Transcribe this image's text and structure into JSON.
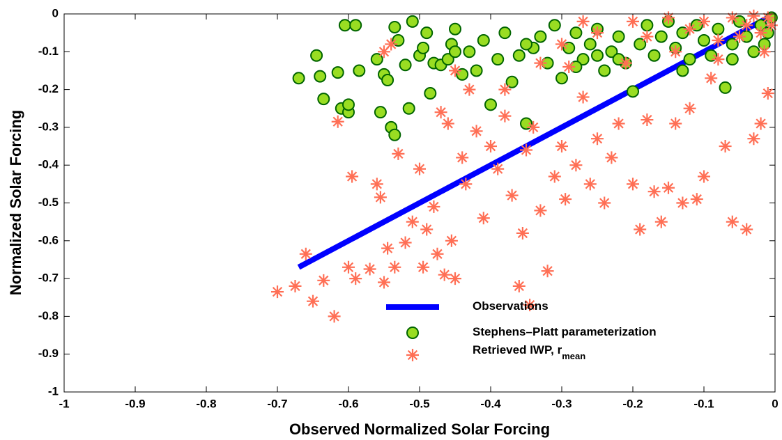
{
  "chart_data": {
    "type": "scatter",
    "xlabel": "Observed Normalized Solar Forcing",
    "ylabel": "Normalized Solar Forcing",
    "xlim": [
      -1,
      0
    ],
    "ylim": [
      -1,
      0
    ],
    "xticks": [
      -1,
      -0.9,
      -0.8,
      -0.7,
      -0.6,
      -0.5,
      -0.4,
      -0.3,
      -0.2,
      -0.1,
      0
    ],
    "yticks": [
      -1,
      -0.9,
      -0.8,
      -0.7,
      -0.6,
      -0.5,
      -0.4,
      -0.3,
      -0.2,
      -0.1,
      0
    ],
    "grid": false,
    "series": [
      {
        "name": "Observations",
        "color": "#0000ff",
        "marker": "line",
        "x": [
          -0.67,
          0
        ],
        "values": [
          -0.67,
          0
        ]
      },
      {
        "name": "Stephens–Platt parameterization",
        "color": "#99dd22",
        "edge": "#006400",
        "marker": "circle",
        "x": [
          -0.67,
          -0.645,
          -0.64,
          -0.635,
          -0.615,
          -0.61,
          -0.605,
          -0.6,
          -0.6,
          -0.59,
          -0.585,
          -0.56,
          -0.555,
          -0.55,
          -0.545,
          -0.54,
          -0.535,
          -0.535,
          -0.53,
          -0.52,
          -0.515,
          -0.51,
          -0.5,
          -0.495,
          -0.49,
          -0.485,
          -0.48,
          -0.47,
          -0.46,
          -0.455,
          -0.45,
          -0.44,
          -0.43,
          -0.42,
          -0.41,
          -0.4,
          -0.39,
          -0.38,
          -0.37,
          -0.36,
          -0.35,
          -0.34,
          -0.33,
          -0.32,
          -0.31,
          -0.3,
          -0.29,
          -0.28,
          -0.27,
          -0.26,
          -0.25,
          -0.24,
          -0.23,
          -0.22,
          -0.21,
          -0.2,
          -0.19,
          -0.18,
          -0.17,
          -0.16,
          -0.15,
          -0.14,
          -0.13,
          -0.12,
          -0.11,
          -0.1,
          -0.09,
          -0.08,
          -0.07,
          -0.06,
          -0.05,
          -0.04,
          -0.03,
          -0.02,
          -0.015,
          -0.01,
          -0.005,
          -0.25,
          -0.35,
          -0.45,
          -0.28,
          -0.22,
          -0.13,
          -0.06
        ],
        "values": [
          -0.17,
          -0.11,
          -0.165,
          -0.225,
          -0.155,
          -0.25,
          -0.03,
          -0.26,
          -0.24,
          -0.03,
          -0.15,
          -0.12,
          -0.26,
          -0.16,
          -0.175,
          -0.3,
          -0.035,
          -0.32,
          -0.07,
          -0.135,
          -0.25,
          -0.02,
          -0.11,
          -0.09,
          -0.05,
          -0.21,
          -0.13,
          -0.135,
          -0.12,
          -0.08,
          -0.04,
          -0.16,
          -0.1,
          -0.15,
          -0.07,
          -0.24,
          -0.12,
          -0.05,
          -0.18,
          -0.11,
          -0.29,
          -0.09,
          -0.06,
          -0.13,
          -0.03,
          -0.17,
          -0.09,
          -0.05,
          -0.12,
          -0.08,
          -0.04,
          -0.15,
          -0.1,
          -0.06,
          -0.13,
          -0.205,
          -0.08,
          -0.03,
          -0.11,
          -0.06,
          -0.02,
          -0.09,
          -0.05,
          -0.12,
          -0.03,
          -0.07,
          -0.11,
          -0.04,
          -0.195,
          -0.08,
          -0.02,
          -0.06,
          -0.1,
          -0.03,
          -0.08,
          -0.05,
          -0.01,
          -0.11,
          -0.08,
          -0.1,
          -0.14,
          -0.12,
          -0.15,
          -0.12
        ]
      },
      {
        "name": "Retrieved IWP, r",
        "name_sub": "mean",
        "color": "#ff6f55",
        "marker": "star",
        "x": [
          -0.7,
          -0.675,
          -0.66,
          -0.65,
          -0.635,
          -0.62,
          -0.615,
          -0.6,
          -0.595,
          -0.59,
          -0.57,
          -0.56,
          -0.555,
          -0.55,
          -0.545,
          -0.54,
          -0.535,
          -0.53,
          -0.52,
          -0.51,
          -0.5,
          -0.495,
          -0.49,
          -0.48,
          -0.475,
          -0.47,
          -0.465,
          -0.46,
          -0.455,
          -0.45,
          -0.44,
          -0.435,
          -0.43,
          -0.42,
          -0.41,
          -0.4,
          -0.39,
          -0.38,
          -0.37,
          -0.36,
          -0.355,
          -0.35,
          -0.345,
          -0.34,
          -0.33,
          -0.32,
          -0.31,
          -0.3,
          -0.295,
          -0.29,
          -0.28,
          -0.27,
          -0.26,
          -0.25,
          -0.24,
          -0.23,
          -0.22,
          -0.21,
          -0.2,
          -0.19,
          -0.18,
          -0.17,
          -0.16,
          -0.15,
          -0.14,
          -0.13,
          -0.12,
          -0.11,
          -0.1,
          -0.09,
          -0.08,
          -0.07,
          -0.06,
          -0.05,
          -0.04,
          -0.03,
          -0.02,
          -0.015,
          -0.01,
          -0.005,
          -0.55,
          -0.45,
          -0.38,
          -0.3,
          -0.25,
          -0.2,
          -0.18,
          -0.15,
          -0.12,
          -0.1,
          -0.08,
          -0.06,
          -0.04,
          -0.03,
          -0.02,
          -0.01,
          -0.33,
          -0.27,
          -0.14
        ],
        "values": [
          -0.735,
          -0.72,
          -0.635,
          -0.76,
          -0.705,
          -0.8,
          -0.285,
          -0.67,
          -0.43,
          -0.7,
          -0.675,
          -0.45,
          -0.485,
          -0.71,
          -0.62,
          -0.08,
          -0.67,
          -0.37,
          -0.605,
          -0.55,
          -0.41,
          -0.67,
          -0.57,
          -0.51,
          -0.635,
          -0.26,
          -0.69,
          -0.29,
          -0.6,
          -0.7,
          -0.38,
          -0.45,
          -0.2,
          -0.31,
          -0.54,
          -0.35,
          -0.41,
          -0.27,
          -0.48,
          -0.72,
          -0.58,
          -0.36,
          -0.77,
          -0.3,
          -0.52,
          -0.68,
          -0.43,
          -0.35,
          -0.49,
          -0.14,
          -0.4,
          -0.22,
          -0.45,
          -0.33,
          -0.5,
          -0.38,
          -0.29,
          -0.13,
          -0.45,
          -0.57,
          -0.28,
          -0.47,
          -0.55,
          -0.46,
          -0.29,
          -0.5,
          -0.25,
          -0.49,
          -0.43,
          -0.17,
          -0.12,
          -0.35,
          -0.55,
          -0.06,
          -0.57,
          -0.33,
          -0.29,
          -0.1,
          -0.21,
          -0.03,
          -0.1,
          -0.15,
          -0.2,
          -0.08,
          -0.05,
          -0.02,
          -0.06,
          -0.01,
          -0.04,
          -0.02,
          -0.07,
          -0.01,
          -0.03,
          -0.005,
          -0.05,
          -0.01,
          -0.13,
          -0.02,
          -0.1
        ]
      }
    ]
  }
}
